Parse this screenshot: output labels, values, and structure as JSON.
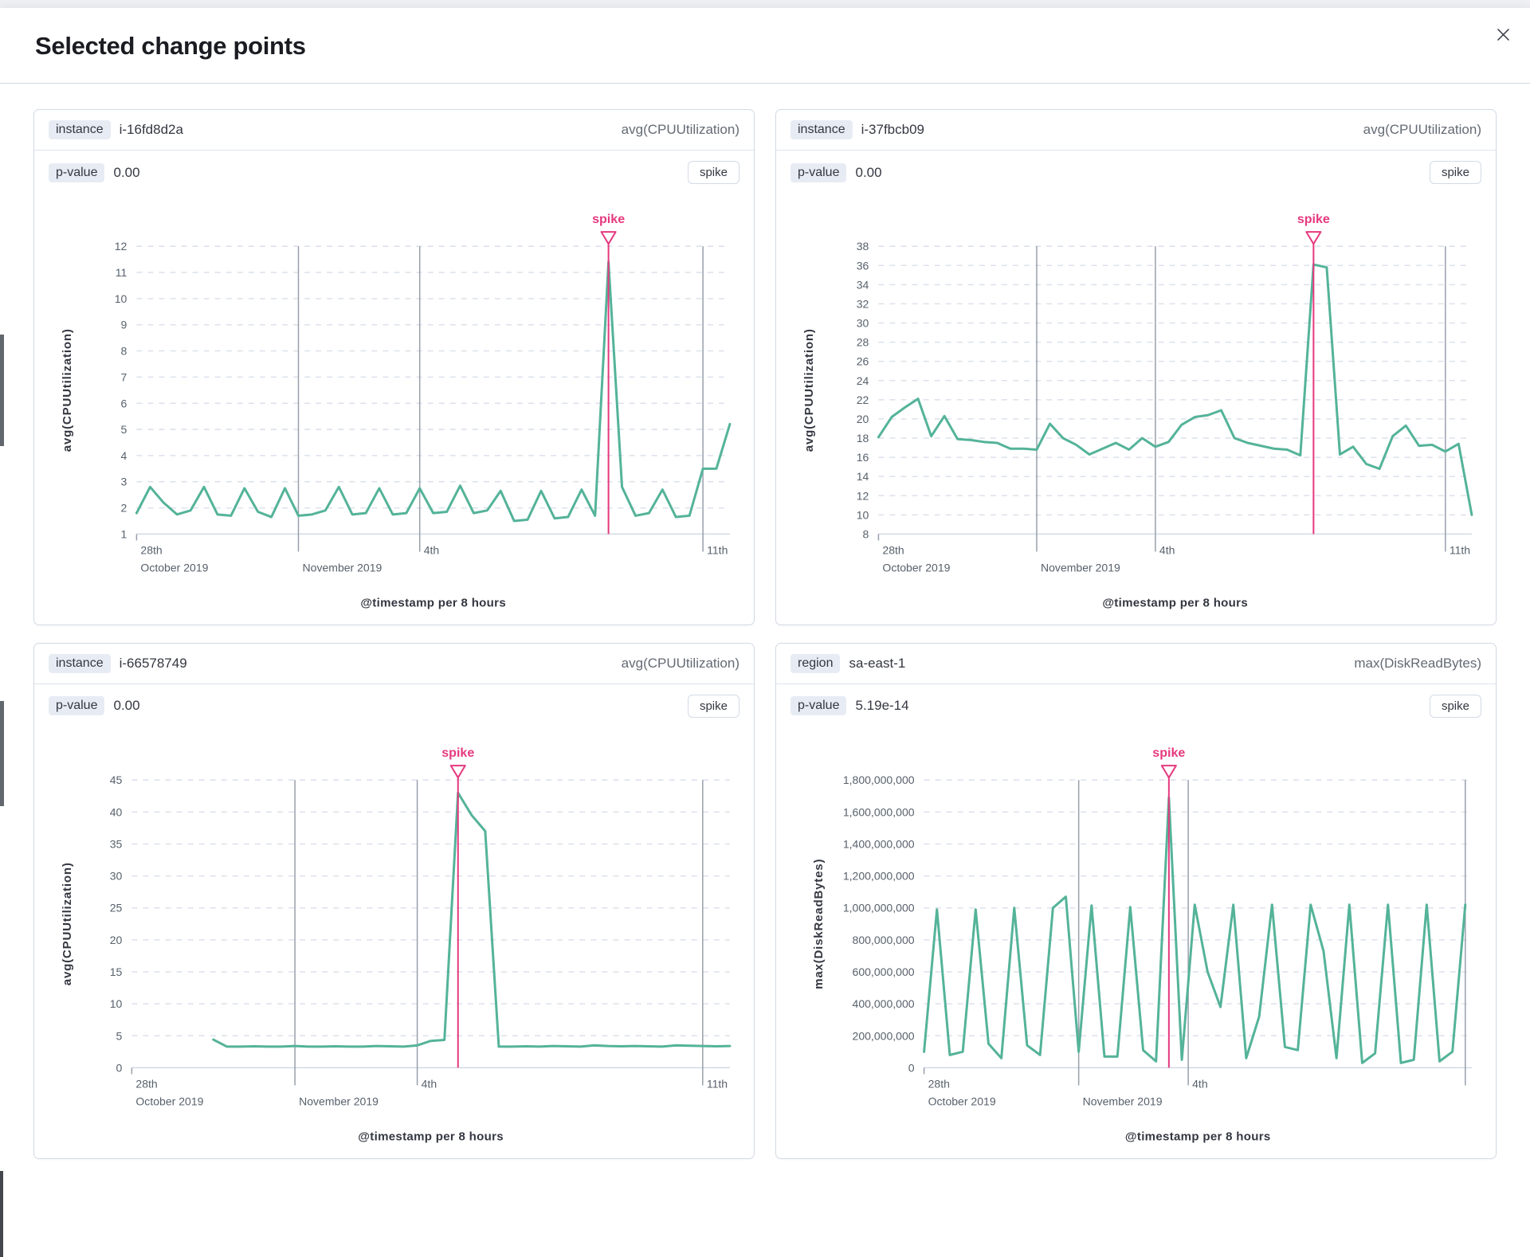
{
  "modal": {
    "title": "Selected change points"
  },
  "colors": {
    "series": "#54b399",
    "accent": "#e5397f",
    "grid_light": "#dce1ec",
    "grid_dark": "#98a0ab",
    "axis": "#d3dae6",
    "tick_text": "#57616c",
    "title_text": "#343741",
    "chip_bg": "#e7ecf4"
  },
  "panels": [
    {
      "key_label": "instance",
      "key_value": "i-16fd8d2a",
      "metric": "avg(CPUUtilization)",
      "pvalue_label": "p-value",
      "pvalue": "0.00",
      "change_type": "spike"
    },
    {
      "key_label": "instance",
      "key_value": "i-37fbcb09",
      "metric": "avg(CPUUtilization)",
      "pvalue_label": "p-value",
      "pvalue": "0.00",
      "change_type": "spike"
    },
    {
      "key_label": "instance",
      "key_value": "i-66578749",
      "metric": "avg(CPUUtilization)",
      "pvalue_label": "p-value",
      "pvalue": "0.00",
      "change_type": "spike"
    },
    {
      "key_label": "region",
      "key_value": "sa-east-1",
      "metric": "max(DiskReadBytes)",
      "pvalue_label": "p-value",
      "pvalue": "5.19e-14",
      "change_type": "spike"
    }
  ],
  "chart_data": [
    {
      "type": "line",
      "ylabel": "avg(CPUUtilization)",
      "xlabel": "@timestamp per 8 hours",
      "ylim": [
        1,
        12
      ],
      "ytick_step": 1,
      "xlim": [
        0,
        44
      ],
      "x_start": 0,
      "ml": 118,
      "yl_x": 36,
      "xticks": [
        {
          "x": 0,
          "label": "28th",
          "sub": "October 2019",
          "grid": false
        },
        {
          "x": 12,
          "label": "",
          "sub": "November 2019",
          "grid": true
        },
        {
          "x": 21,
          "label": "4th",
          "sub": "",
          "grid": true
        },
        {
          "x": 42,
          "label": "11th",
          "sub": "",
          "grid": true
        }
      ],
      "annotation": {
        "x": 35,
        "label": "spike"
      },
      "values": [
        1.8,
        2.8,
        2.2,
        1.75,
        1.9,
        2.8,
        1.75,
        1.7,
        2.75,
        1.85,
        1.65,
        2.75,
        1.7,
        1.75,
        1.9,
        2.8,
        1.75,
        1.8,
        2.75,
        1.75,
        1.8,
        2.75,
        1.8,
        1.85,
        2.85,
        1.8,
        1.9,
        2.65,
        1.5,
        1.55,
        2.65,
        1.6,
        1.65,
        2.7,
        1.7,
        11.4,
        2.8,
        1.7,
        1.8,
        2.7,
        1.65,
        1.7,
        3.5,
        3.5,
        5.2
      ]
    },
    {
      "type": "line",
      "ylabel": "avg(CPUUtilization)",
      "xlabel": "@timestamp per 8 hours",
      "ylim": [
        8,
        38
      ],
      "ytick_step": 2,
      "xlim": [
        0,
        45
      ],
      "x_start": 0,
      "ml": 118,
      "yl_x": 36,
      "xticks": [
        {
          "x": 0,
          "label": "28th",
          "sub": "October 2019",
          "grid": false
        },
        {
          "x": 12,
          "label": "",
          "sub": "November 2019",
          "grid": true
        },
        {
          "x": 21,
          "label": "4th",
          "sub": "",
          "grid": true
        },
        {
          "x": 43,
          "label": "11th",
          "sub": "",
          "grid": true
        }
      ],
      "annotation": {
        "x": 33,
        "label": "spike"
      },
      "values": [
        18.1,
        20.2,
        21.2,
        22.1,
        18.2,
        20.3,
        17.9,
        17.8,
        17.6,
        17.5,
        16.9,
        16.9,
        16.8,
        19.5,
        18.0,
        17.3,
        16.3,
        16.9,
        17.5,
        16.8,
        18.0,
        17.1,
        17.6,
        19.4,
        20.2,
        20.4,
        20.9,
        18.0,
        17.5,
        17.2,
        16.9,
        16.8,
        16.2,
        36.1,
        35.8,
        16.3,
        17.1,
        15.3,
        14.8,
        18.2,
        19.3,
        17.2,
        17.3,
        16.6,
        17.4,
        10.0
      ]
    },
    {
      "type": "line",
      "ylabel": "avg(CPUUtilization)",
      "xlabel": "@timestamp per 8 hours",
      "ylim": [
        0,
        45
      ],
      "ytick_step": 5,
      "xlim": [
        0,
        44
      ],
      "x_start": 6,
      "ml": 112,
      "yl_x": 36,
      "xticks": [
        {
          "x": 0,
          "label": "28th",
          "sub": "October 2019",
          "grid": false
        },
        {
          "x": 12,
          "label": "",
          "sub": "November 2019",
          "grid": true
        },
        {
          "x": 21,
          "label": "4th",
          "sub": "",
          "grid": true
        },
        {
          "x": 42,
          "label": "11th",
          "sub": "",
          "grid": true
        }
      ],
      "annotation": {
        "x": 24,
        "label": "spike"
      },
      "values": [
        4.4,
        3.3,
        3.3,
        3.35,
        3.3,
        3.3,
        3.4,
        3.3,
        3.3,
        3.35,
        3.3,
        3.3,
        3.4,
        3.35,
        3.3,
        3.5,
        4.2,
        4.35,
        43.0,
        39.5,
        37.0,
        3.3,
        3.3,
        3.35,
        3.3,
        3.4,
        3.35,
        3.3,
        3.5,
        3.4,
        3.35,
        3.4,
        3.35,
        3.3,
        3.5,
        3.45,
        3.4,
        3.35,
        3.4
      ]
    },
    {
      "type": "line",
      "ylabel": "max(DiskReadBytes)",
      "xlabel": "@timestamp per 8 hours",
      "ylim": [
        0,
        1800000000
      ],
      "ytick_step": 200000000,
      "xlim": [
        0,
        42.5
      ],
      "x_start": 0,
      "ml": 175,
      "yl_x": 48,
      "xticks": [
        {
          "x": 0,
          "label": "28th",
          "sub": "October 2019",
          "grid": false
        },
        {
          "x": 12,
          "label": "",
          "sub": "November 2019",
          "grid": true
        },
        {
          "x": 20.5,
          "label": "4th",
          "sub": "",
          "grid": true
        },
        {
          "x": 42,
          "label": "",
          "sub": "",
          "grid": true
        }
      ],
      "annotation": {
        "x": 19,
        "label": "spike"
      },
      "values": [
        100000000,
        990000000,
        80000000,
        100000000,
        990000000,
        150000000,
        60000000,
        1000000000,
        140000000,
        80000000,
        1000000000,
        1070000000,
        100000000,
        1015000000,
        70000000,
        70000000,
        1005000000,
        110000000,
        40000000,
        1690000000,
        50000000,
        1020000000,
        600000000,
        380000000,
        1020000000,
        60000000,
        320000000,
        1020000000,
        130000000,
        110000000,
        1020000000,
        730000000,
        60000000,
        1020000000,
        30000000,
        90000000,
        1020000000,
        30000000,
        50000000,
        1020000000,
        40000000,
        100000000,
        1020000000
      ]
    }
  ]
}
